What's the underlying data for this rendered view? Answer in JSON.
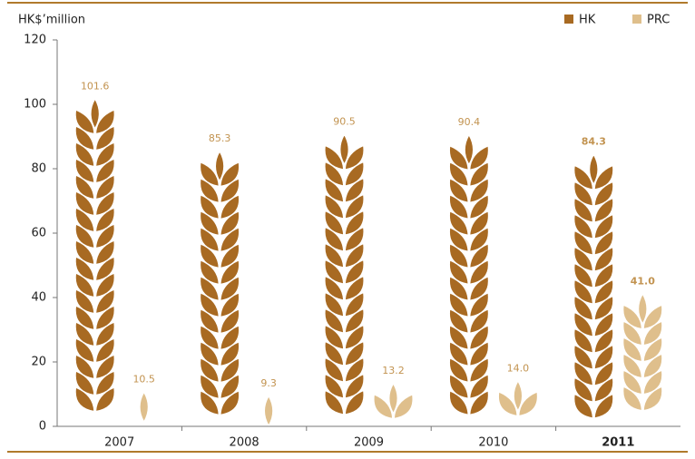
{
  "chart_data": {
    "type": "pictogram_bar",
    "y_axis_label": "HK$’million",
    "categories": [
      "2007",
      "2008",
      "2009",
      "2010",
      "2011"
    ],
    "series": [
      {
        "name": "HK",
        "color": "#a86a22",
        "values": [
          101.6,
          85.3,
          90.5,
          90.4,
          84.3
        ],
        "value_labels": [
          "101.6",
          "85.3",
          "90.5",
          "90.4",
          "84.3"
        ]
      },
      {
        "name": "PRC",
        "color": "#dfbf8c",
        "values": [
          10.5,
          9.3,
          13.2,
          14.0,
          41.0
        ],
        "value_labels": [
          "10.5",
          "9.3",
          "13.2",
          "14.0",
          "41.0"
        ]
      }
    ],
    "ylim": [
      0,
      120
    ],
    "yticks": [
      0,
      20,
      40,
      60,
      80,
      100,
      120
    ],
    "grid": false,
    "legend": "top-right"
  }
}
